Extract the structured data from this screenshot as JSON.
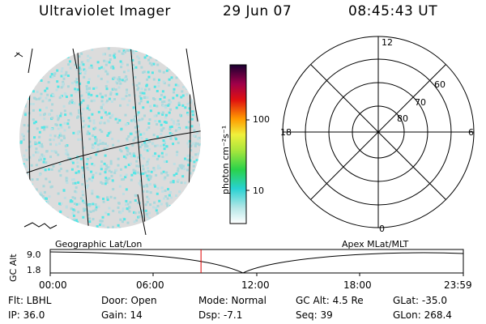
{
  "header": {
    "instrument": "Ultraviolet Imager",
    "date": "29 Jun 07",
    "time": "08:45:43 UT"
  },
  "colorbar": {
    "label": "photon cm⁻²s⁻¹",
    "ticks": [
      "100",
      "10"
    ]
  },
  "polar_plot": {
    "lat_labels": [
      "60",
      "70",
      "80"
    ],
    "mlt_labels": {
      "top": "12",
      "right": "6",
      "bottom": "0",
      "left": "18"
    }
  },
  "altitude_panel": {
    "left_title": "Geographic Lat/Lon",
    "right_title": "Apex MLat/MLT",
    "axis_label": "GC Alt",
    "y_ticks": [
      "9.0",
      "1.8"
    ],
    "x_ticks": [
      "00:00",
      "06:00",
      "12:00",
      "18:00",
      "23:59"
    ],
    "current_time_hours": 8.76,
    "current_marker_color": "#e00000"
  },
  "status": {
    "flt": "Flt: LBHL",
    "door": "Door: Open",
    "mode": "Mode: Normal",
    "gc_alt": "GC Alt: 4.5 Re",
    "glat": "GLat: -35.0",
    "ip": "IP: 36.0",
    "gain": "Gain: 14",
    "dsp": "Dsp:   -7.1",
    "seq": "Seq: 39",
    "glon": "GLon: 268.4"
  },
  "colors": {
    "emission": "#55e6e6",
    "emission_faint": "#a8d8dc",
    "disk_background": "#d6d6d6"
  }
}
